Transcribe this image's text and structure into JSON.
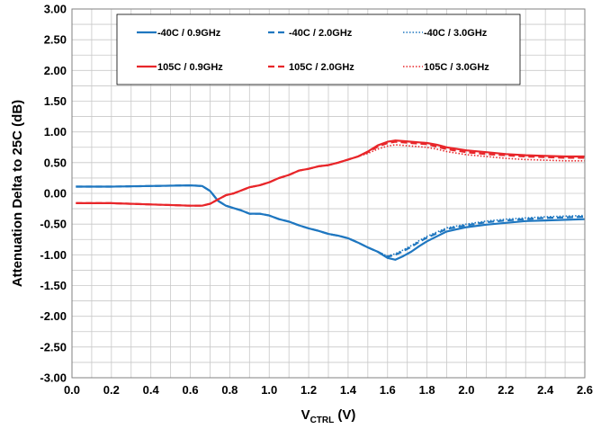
{
  "chart_data": {
    "type": "line",
    "xlabel_main": "V",
    "xlabel_sub": "CTRL",
    "xlabel_unit": " (V)",
    "ylabel": "Attenuation Delta to 25C  (dB)",
    "xlim": [
      0,
      2.6
    ],
    "ylim": [
      -3.0,
      3.0
    ],
    "grid": true,
    "legend_position": "top",
    "x_ticks": [
      "0.0",
      "0.2",
      "0.4",
      "0.6",
      "0.8",
      "1.0",
      "1.2",
      "1.4",
      "1.6",
      "1.8",
      "2.0",
      "2.2",
      "2.4",
      "2.6"
    ],
    "y_ticks": [
      "3.00",
      "2.50",
      "2.00",
      "1.50",
      "1.00",
      "0.50",
      "0.00",
      "-0.50",
      "-1.00",
      "-1.50",
      "-2.00",
      "-2.50",
      "-3.00"
    ],
    "series": [
      {
        "name": "-40C /  0.9GHz",
        "color": "#1f77c0",
        "dash": "solid",
        "x": [
          0.02,
          0.2,
          0.4,
          0.6,
          0.66,
          0.7,
          0.74,
          0.78,
          0.82,
          0.86,
          0.9,
          0.95,
          1.0,
          1.05,
          1.1,
          1.15,
          1.2,
          1.25,
          1.3,
          1.35,
          1.4,
          1.45,
          1.5,
          1.55,
          1.6,
          1.64,
          1.68,
          1.72,
          1.76,
          1.8,
          1.85,
          1.9,
          2.0,
          2.1,
          2.2,
          2.3,
          2.4,
          2.5,
          2.6
        ],
        "y": [
          0.11,
          0.11,
          0.12,
          0.13,
          0.12,
          0.04,
          -0.12,
          -0.2,
          -0.24,
          -0.28,
          -0.33,
          -0.33,
          -0.36,
          -0.42,
          -0.46,
          -0.52,
          -0.57,
          -0.61,
          -0.66,
          -0.69,
          -0.73,
          -0.8,
          -0.88,
          -0.95,
          -1.05,
          -1.08,
          -1.02,
          -0.95,
          -0.86,
          -0.78,
          -0.7,
          -0.62,
          -0.55,
          -0.51,
          -0.48,
          -0.45,
          -0.44,
          -0.43,
          -0.42
        ]
      },
      {
        "name": "-40C /  2.0GHz",
        "color": "#1f77c0",
        "dash": "dashed",
        "x": [
          0.02,
          0.2,
          0.4,
          0.6,
          0.66,
          0.7,
          0.74,
          0.78,
          0.82,
          0.86,
          0.9,
          0.95,
          1.0,
          1.05,
          1.1,
          1.15,
          1.2,
          1.25,
          1.3,
          1.35,
          1.4,
          1.45,
          1.5,
          1.55,
          1.6,
          1.64,
          1.68,
          1.72,
          1.76,
          1.8,
          1.85,
          1.9,
          2.0,
          2.1,
          2.2,
          2.3,
          2.4,
          2.5,
          2.6
        ],
        "y": [
          0.11,
          0.11,
          0.12,
          0.13,
          0.12,
          0.04,
          -0.12,
          -0.2,
          -0.24,
          -0.28,
          -0.33,
          -0.33,
          -0.36,
          -0.42,
          -0.46,
          -0.52,
          -0.57,
          -0.61,
          -0.66,
          -0.69,
          -0.73,
          -0.8,
          -0.88,
          -0.95,
          -1.03,
          -1.0,
          -0.94,
          -0.87,
          -0.79,
          -0.72,
          -0.65,
          -0.58,
          -0.52,
          -0.47,
          -0.44,
          -0.42,
          -0.4,
          -0.39,
          -0.38
        ]
      },
      {
        "name": "-40C /  3.0GHz",
        "color": "#1f77c0",
        "dash": "dotted",
        "x": [
          0.02,
          0.2,
          0.4,
          0.6,
          0.66,
          0.7,
          0.74,
          0.78,
          0.82,
          0.86,
          0.9,
          0.95,
          1.0,
          1.05,
          1.1,
          1.15,
          1.2,
          1.25,
          1.3,
          1.35,
          1.4,
          1.45,
          1.5,
          1.55,
          1.6,
          1.64,
          1.68,
          1.72,
          1.76,
          1.8,
          1.85,
          1.9,
          2.0,
          2.1,
          2.2,
          2.3,
          2.4,
          2.5,
          2.6
        ],
        "y": [
          0.11,
          0.11,
          0.12,
          0.13,
          0.12,
          0.04,
          -0.12,
          -0.2,
          -0.24,
          -0.28,
          -0.33,
          -0.33,
          -0.36,
          -0.42,
          -0.46,
          -0.52,
          -0.57,
          -0.61,
          -0.66,
          -0.69,
          -0.73,
          -0.8,
          -0.88,
          -0.95,
          -1.02,
          -0.98,
          -0.92,
          -0.85,
          -0.77,
          -0.7,
          -0.63,
          -0.56,
          -0.5,
          -0.45,
          -0.42,
          -0.4,
          -0.38,
          -0.37,
          -0.36
        ]
      },
      {
        "name": "105C /  0.9GHz",
        "color": "#e8262a",
        "dash": "solid",
        "x": [
          0.02,
          0.2,
          0.4,
          0.6,
          0.66,
          0.7,
          0.74,
          0.78,
          0.82,
          0.86,
          0.9,
          0.95,
          1.0,
          1.05,
          1.1,
          1.15,
          1.2,
          1.25,
          1.3,
          1.35,
          1.4,
          1.45,
          1.5,
          1.55,
          1.6,
          1.64,
          1.68,
          1.72,
          1.76,
          1.8,
          1.85,
          1.9,
          2.0,
          2.1,
          2.2,
          2.3,
          2.4,
          2.5,
          2.6
        ],
        "y": [
          -0.16,
          -0.16,
          -0.18,
          -0.2,
          -0.2,
          -0.17,
          -0.1,
          -0.03,
          0.0,
          0.05,
          0.1,
          0.13,
          0.18,
          0.25,
          0.3,
          0.37,
          0.4,
          0.44,
          0.46,
          0.5,
          0.55,
          0.6,
          0.68,
          0.78,
          0.84,
          0.86,
          0.85,
          0.84,
          0.83,
          0.82,
          0.79,
          0.75,
          0.7,
          0.67,
          0.64,
          0.62,
          0.61,
          0.6,
          0.6
        ]
      },
      {
        "name": "105C /  2.0GHz",
        "color": "#e8262a",
        "dash": "dashed",
        "x": [
          0.02,
          0.2,
          0.4,
          0.6,
          0.66,
          0.7,
          0.74,
          0.78,
          0.82,
          0.86,
          0.9,
          0.95,
          1.0,
          1.05,
          1.1,
          1.15,
          1.2,
          1.25,
          1.3,
          1.35,
          1.4,
          1.45,
          1.5,
          1.55,
          1.6,
          1.64,
          1.68,
          1.72,
          1.76,
          1.8,
          1.85,
          1.9,
          2.0,
          2.1,
          2.2,
          2.3,
          2.4,
          2.5,
          2.6
        ],
        "y": [
          -0.16,
          -0.16,
          -0.18,
          -0.2,
          -0.2,
          -0.17,
          -0.1,
          -0.03,
          0.0,
          0.05,
          0.1,
          0.13,
          0.18,
          0.25,
          0.3,
          0.37,
          0.4,
          0.44,
          0.46,
          0.5,
          0.55,
          0.6,
          0.67,
          0.76,
          0.82,
          0.84,
          0.83,
          0.82,
          0.81,
          0.8,
          0.76,
          0.72,
          0.67,
          0.64,
          0.62,
          0.6,
          0.59,
          0.58,
          0.58
        ]
      },
      {
        "name": "105C /  3.0GHz",
        "color": "#e8262a",
        "dash": "dotted",
        "x": [
          0.02,
          0.2,
          0.4,
          0.6,
          0.66,
          0.7,
          0.74,
          0.78,
          0.82,
          0.86,
          0.9,
          0.95,
          1.0,
          1.05,
          1.1,
          1.15,
          1.2,
          1.25,
          1.3,
          1.35,
          1.4,
          1.45,
          1.5,
          1.55,
          1.6,
          1.64,
          1.68,
          1.72,
          1.76,
          1.8,
          1.85,
          1.9,
          2.0,
          2.1,
          2.2,
          2.3,
          2.4,
          2.5,
          2.6
        ],
        "y": [
          -0.16,
          -0.16,
          -0.18,
          -0.2,
          -0.2,
          -0.17,
          -0.1,
          -0.03,
          0.0,
          0.05,
          0.1,
          0.13,
          0.18,
          0.25,
          0.3,
          0.37,
          0.4,
          0.44,
          0.46,
          0.5,
          0.55,
          0.6,
          0.65,
          0.72,
          0.77,
          0.79,
          0.78,
          0.77,
          0.76,
          0.75,
          0.72,
          0.68,
          0.63,
          0.6,
          0.57,
          0.55,
          0.54,
          0.53,
          0.53
        ]
      }
    ]
  }
}
